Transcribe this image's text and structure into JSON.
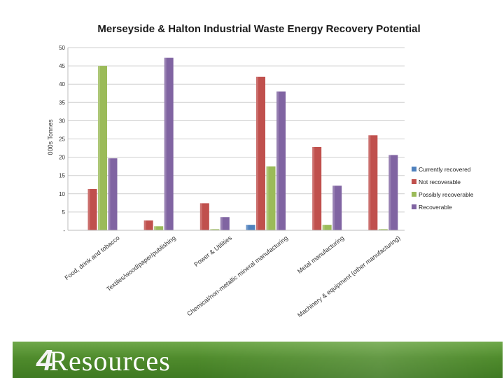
{
  "chart_data": {
    "type": "bar",
    "title": "Merseyside & Halton Industrial Waste Energy Recovery Potential",
    "ylabel": "000s Tonnes",
    "xlabel": "",
    "ylim": [
      0,
      50
    ],
    "yticks": [
      {
        "value": 0,
        "label": "-"
      },
      {
        "value": 5,
        "label": "5"
      },
      {
        "value": 10,
        "label": "10"
      },
      {
        "value": 15,
        "label": "15"
      },
      {
        "value": 20,
        "label": "20"
      },
      {
        "value": 25,
        "label": "25"
      },
      {
        "value": 30,
        "label": "30"
      },
      {
        "value": 35,
        "label": "35"
      },
      {
        "value": 40,
        "label": "40"
      },
      {
        "value": 45,
        "label": "45"
      },
      {
        "value": 50,
        "label": "50"
      }
    ],
    "grid": true,
    "legend_position": "right",
    "categories": [
      "Food, drink and tobacco",
      "Textiles/wood/paper/publishing",
      "Power & Utilities",
      "Chemical/non-metallic mineral manufacturing",
      "Metal manufacturing",
      "Machinery & equipment (other manufacturing)"
    ],
    "series": [
      {
        "name": "Currently recovered",
        "color": "#4f81bd",
        "values": [
          0,
          0,
          0,
          1.5,
          0,
          0
        ]
      },
      {
        "name": "Not recoverable",
        "color": "#c0504d",
        "values": [
          11.3,
          2.7,
          7.4,
          42,
          22.8,
          26
        ]
      },
      {
        "name": "Possibly recoverable",
        "color": "#9bbb59",
        "values": [
          45,
          1.1,
          0.3,
          17.5,
          1.5,
          0.3
        ]
      },
      {
        "name": "Recoverable",
        "color": "#8064a2",
        "values": [
          19.7,
          47.2,
          3.6,
          38,
          12.2,
          20.6
        ]
      }
    ]
  },
  "footer": {
    "logo_digit": "4",
    "logo_text": "Resources"
  }
}
